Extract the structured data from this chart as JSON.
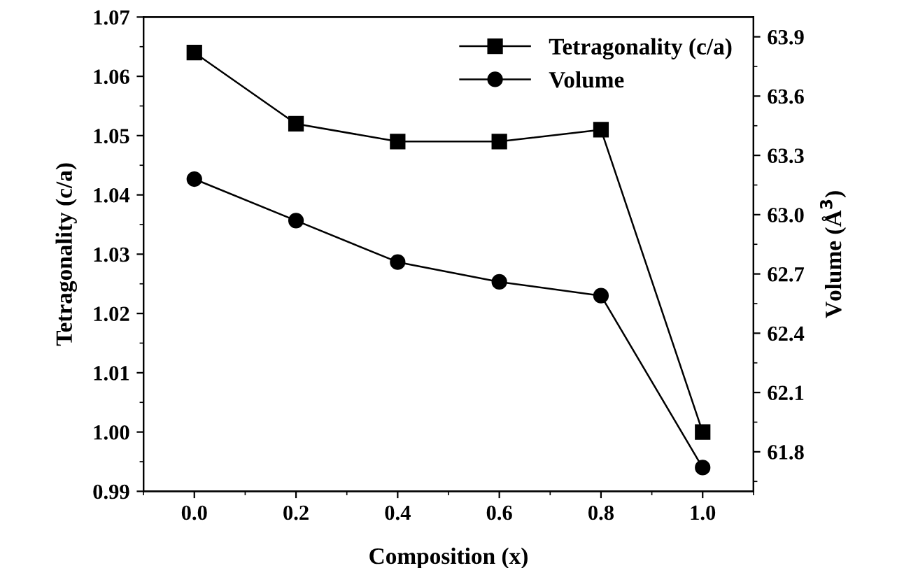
{
  "chart_data": {
    "type": "line",
    "xlabel": "Composition (x)",
    "ylabel": "Tetragonality (c/a)",
    "y2label": "Volume (Å$^{3}$)",
    "x": [
      0.0,
      0.2,
      0.4,
      0.6,
      0.8,
      1.0
    ],
    "series": [
      {
        "name": "Tetragonality (c/a)",
        "color": "#000000",
        "marker": "square",
        "values": [
          1.064,
          1.052,
          1.049,
          1.049,
          1.051,
          1.0
        ]
      },
      {
        "name": "Volume",
        "color": "#000000",
        "marker": "circle",
        "axis": "y2",
        "values": [
          63.18,
          62.97,
          62.76,
          62.66,
          62.59,
          61.72
        ]
      }
    ],
    "xlim": [
      -0.1,
      1.1
    ],
    "xticks": [
      {
        "value": 0.0,
        "label": "0.0"
      },
      0.2,
      0.4,
      0.6,
      0.8,
      {
        "value": 1.0,
        "label": "1.0"
      }
    ],
    "ylim": [
      0.99,
      1.07
    ],
    "yticks": [
      0.99,
      {
        "value": 1.0,
        "label": "1.00"
      },
      1.01,
      1.02,
      1.03,
      1.04,
      1.05,
      1.06,
      1.07
    ],
    "y2lim": [
      61.6,
      64.0
    ],
    "y2ticks": [
      61.8,
      62.1,
      62.4,
      62.7,
      {
        "value": 63.0,
        "label": "63.0"
      },
      63.3,
      63.6,
      63.9
    ],
    "legend": "top right",
    "grid": false,
    "line_style": "solid"
  }
}
